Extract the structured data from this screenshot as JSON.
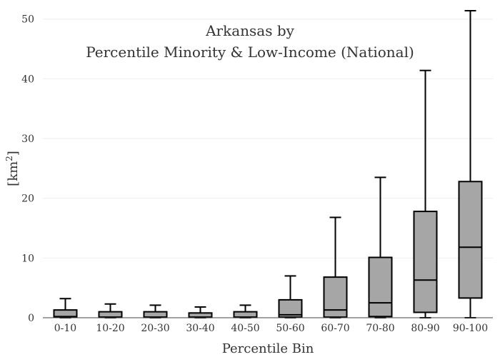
{
  "chart_data": {
    "type": "box",
    "title_line1": "Arkansas  by",
    "title_line2": "Percentile Minority & Low-Income (National)",
    "xlabel": "Percentile Bin",
    "ylabel_base": "[km",
    "ylabel_sup": "2",
    "ylabel_end": "]",
    "ylim": [
      0,
      52
    ],
    "yticks": [
      0,
      10,
      20,
      30,
      40,
      50
    ],
    "grid": true,
    "categories": [
      "0-10",
      "10-20",
      "20-30",
      "30-40",
      "40-50",
      "50-60",
      "60-70",
      "70-80",
      "80-90",
      "90-100"
    ],
    "boxes": [
      {
        "min": 0,
        "q1": 0.1,
        "median": 0.2,
        "q3": 1.3,
        "max": 3.2
      },
      {
        "min": 0,
        "q1": 0.05,
        "median": 0.1,
        "q3": 1.0,
        "max": 2.3
      },
      {
        "min": 0,
        "q1": 0.05,
        "median": 0.1,
        "q3": 1.0,
        "max": 2.1
      },
      {
        "min": 0,
        "q1": 0.05,
        "median": 0.1,
        "q3": 0.8,
        "max": 1.8
      },
      {
        "min": 0,
        "q1": 0.05,
        "median": 0.1,
        "q3": 1.0,
        "max": 2.1
      },
      {
        "min": 0,
        "q1": 0.1,
        "median": 0.5,
        "q3": 3.0,
        "max": 7.0
      },
      {
        "min": 0,
        "q1": 0.1,
        "median": 1.3,
        "q3": 6.8,
        "max": 16.8
      },
      {
        "min": 0,
        "q1": 0.2,
        "median": 2.5,
        "q3": 10.1,
        "max": 23.5
      },
      {
        "min": 0,
        "q1": 0.9,
        "median": 6.3,
        "q3": 17.8,
        "max": 41.4
      },
      {
        "min": 0,
        "q1": 3.3,
        "median": 11.8,
        "q3": 22.8,
        "max": 51.4
      }
    ]
  }
}
